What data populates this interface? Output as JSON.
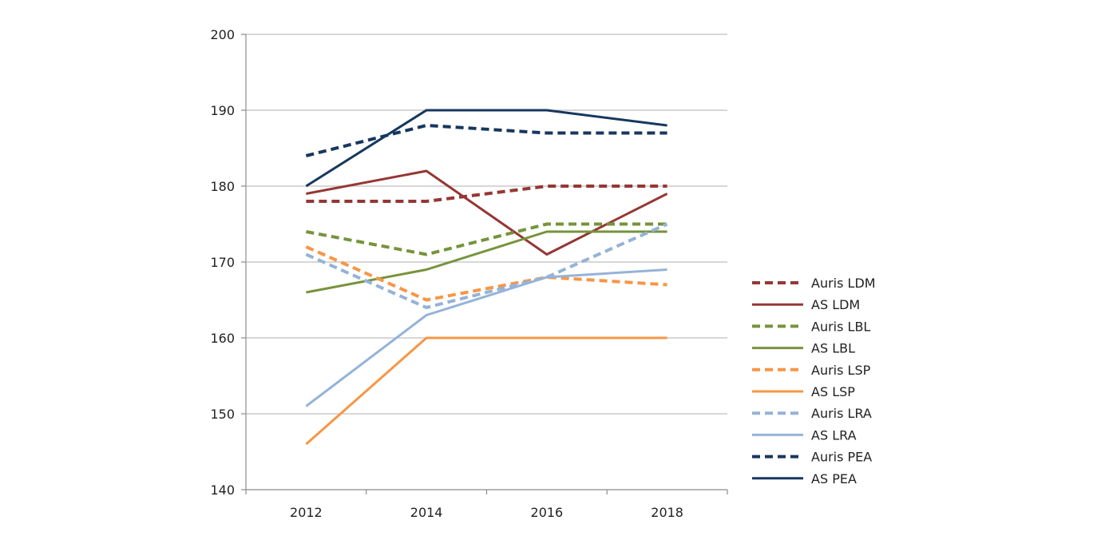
{
  "chart_data": {
    "type": "line",
    "x": [
      "2012",
      "2014",
      "2016",
      "2018"
    ],
    "ylim": [
      140,
      200
    ],
    "yticks": [
      140,
      150,
      160,
      170,
      180,
      190,
      200
    ],
    "grid": true,
    "legend": "right",
    "series": [
      {
        "name": "Auris LDM",
        "values": [
          178,
          178,
          180,
          180
        ],
        "color": "#953735",
        "dashed": true
      },
      {
        "name": "AS LDM",
        "values": [
          179,
          182,
          171,
          179
        ],
        "color": "#953735",
        "dashed": false
      },
      {
        "name": "Auris LBL",
        "values": [
          174,
          171,
          175,
          175
        ],
        "color": "#77933c",
        "dashed": true
      },
      {
        "name": "AS LBL",
        "values": [
          166,
          169,
          174,
          174
        ],
        "color": "#77933c",
        "dashed": false
      },
      {
        "name": "Auris LSP",
        "values": [
          172,
          165,
          168,
          167
        ],
        "color": "#f79646",
        "dashed": true
      },
      {
        "name": "AS LSP",
        "values": [
          146,
          160,
          160,
          160
        ],
        "color": "#f79646",
        "dashed": false
      },
      {
        "name": "Auris LRA",
        "values": [
          171,
          164,
          168,
          175
        ],
        "color": "#95b3d7",
        "dashed": true
      },
      {
        "name": "AS LRA",
        "values": [
          151,
          163,
          168,
          169
        ],
        "color": "#95b3d7",
        "dashed": false
      },
      {
        "name": "Auris PEA",
        "values": [
          184,
          188,
          187,
          187
        ],
        "color": "#17375e",
        "dashed": true
      },
      {
        "name": "AS PEA",
        "values": [
          180,
          190,
          190,
          188
        ],
        "color": "#17375e",
        "dashed": false
      }
    ]
  }
}
